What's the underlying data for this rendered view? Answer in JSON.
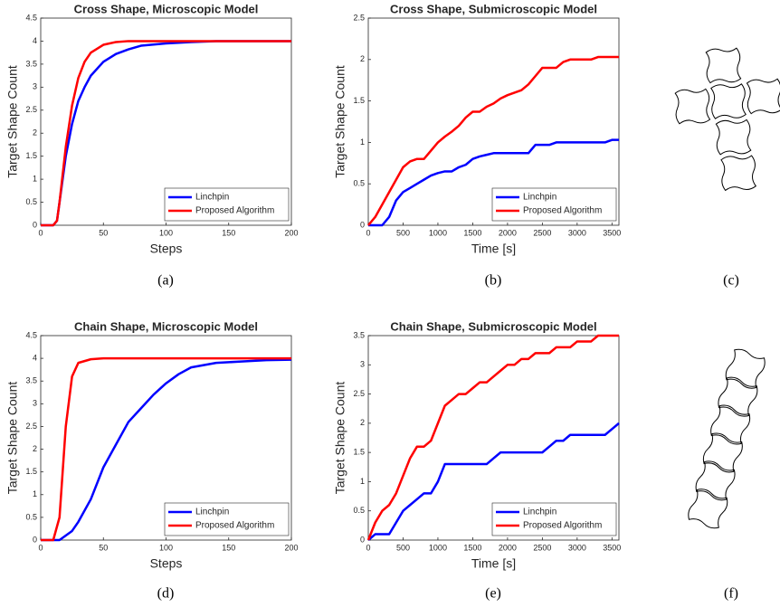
{
  "chart_data": [
    {
      "type": "line",
      "title": "Cross Shape, Microscopic Model",
      "xlabel": "Steps",
      "ylabel": "Target Shape Count",
      "x": [
        0,
        10,
        13,
        15,
        20,
        25,
        30,
        35,
        40,
        50,
        60,
        70,
        80,
        100,
        120,
        140,
        200
      ],
      "series": [
        {
          "name": "Linchpin",
          "color": "#0000ff",
          "values": [
            0,
            0,
            0.1,
            0.5,
            1.5,
            2.2,
            2.7,
            3.0,
            3.25,
            3.55,
            3.72,
            3.82,
            3.9,
            3.95,
            3.98,
            4,
            4
          ]
        },
        {
          "name": "Proposed Algorithm",
          "color": "#ff0000",
          "values": [
            0,
            0,
            0.1,
            0.5,
            1.7,
            2.6,
            3.2,
            3.55,
            3.75,
            3.92,
            3.98,
            4,
            4,
            4,
            4,
            4,
            4
          ]
        }
      ],
      "xlim": [
        0,
        200
      ],
      "ylim": [
        0,
        4.5
      ],
      "xticks": [
        0,
        50,
        100,
        150,
        200
      ],
      "yticks": [
        0,
        0.5,
        1,
        1.5,
        2,
        2.5,
        3,
        3.5,
        4,
        4.5
      ],
      "legend": "lower right"
    },
    {
      "type": "line",
      "title": "Cross Shape, Submicroscopic Model",
      "xlabel": "Time [s]",
      "ylabel": "Target Shape Count",
      "x": [
        0,
        100,
        200,
        300,
        400,
        500,
        600,
        700,
        800,
        900,
        1000,
        1100,
        1200,
        1300,
        1400,
        1500,
        1600,
        1700,
        1800,
        1900,
        2000,
        2100,
        2200,
        2300,
        2400,
        2500,
        2600,
        2700,
        2800,
        2900,
        3000,
        3100,
        3200,
        3300,
        3400,
        3500,
        3600
      ],
      "series": [
        {
          "name": "Linchpin",
          "color": "#0000ff",
          "values": [
            0,
            0,
            0,
            0.1,
            0.3,
            0.4,
            0.45,
            0.5,
            0.55,
            0.6,
            0.63,
            0.65,
            0.65,
            0.7,
            0.73,
            0.8,
            0.83,
            0.85,
            0.87,
            0.87,
            0.87,
            0.87,
            0.87,
            0.87,
            0.97,
            0.97,
            0.97,
            1.0,
            1.0,
            1.0,
            1.0,
            1.0,
            1.0,
            1.0,
            1.0,
            1.03,
            1.03
          ]
        },
        {
          "name": "Proposed Algorithm",
          "color": "#ff0000",
          "values": [
            0,
            0.1,
            0.25,
            0.4,
            0.55,
            0.7,
            0.77,
            0.8,
            0.8,
            0.9,
            1.0,
            1.07,
            1.13,
            1.2,
            1.3,
            1.37,
            1.37,
            1.43,
            1.47,
            1.53,
            1.57,
            1.6,
            1.63,
            1.7,
            1.8,
            1.9,
            1.9,
            1.9,
            1.97,
            2.0,
            2.0,
            2.0,
            2.0,
            2.03,
            2.03,
            2.03,
            2.03
          ]
        }
      ],
      "xlim": [
        0,
        3600
      ],
      "ylim": [
        0,
        2.5
      ],
      "xticks": [
        0,
        500,
        1000,
        1500,
        2000,
        2500,
        3000,
        3500
      ],
      "yticks": [
        0,
        0.5,
        1,
        1.5,
        2,
        2.5
      ],
      "legend": "lower right"
    },
    {
      "type": "line",
      "title": "Chain Shape, Microscopic Model",
      "xlabel": "Steps",
      "ylabel": "Target Shape Count",
      "x": [
        0,
        10,
        15,
        20,
        25,
        30,
        40,
        50,
        60,
        70,
        80,
        90,
        100,
        110,
        120,
        140,
        160,
        180,
        200
      ],
      "series": [
        {
          "name": "Linchpin",
          "color": "#0000ff",
          "values": [
            0,
            0,
            0,
            0.1,
            0.2,
            0.4,
            0.9,
            1.6,
            2.1,
            2.6,
            2.9,
            3.2,
            3.45,
            3.65,
            3.8,
            3.9,
            3.93,
            3.96,
            3.97
          ]
        },
        {
          "name": "Proposed Algorithm",
          "color": "#ff0000",
          "values": [
            0,
            0,
            0.5,
            2.5,
            3.6,
            3.9,
            3.98,
            4,
            4,
            4,
            4,
            4,
            4,
            4,
            4,
            4,
            4,
            4,
            4
          ]
        }
      ],
      "xlim": [
        0,
        200
      ],
      "ylim": [
        0,
        4.5
      ],
      "xticks": [
        0,
        50,
        100,
        150,
        200
      ],
      "yticks": [
        0,
        0.5,
        1,
        1.5,
        2,
        2.5,
        3,
        3.5,
        4,
        4.5
      ],
      "legend": "lower right"
    },
    {
      "type": "line",
      "title": "Chain Shape, Submicroscopic Model",
      "xlabel": "Time [s]",
      "ylabel": "Target Shape Count",
      "x": [
        0,
        100,
        200,
        300,
        400,
        500,
        600,
        700,
        800,
        900,
        1000,
        1100,
        1200,
        1300,
        1400,
        1500,
        1600,
        1700,
        1800,
        1900,
        2000,
        2100,
        2200,
        2300,
        2400,
        2500,
        2600,
        2700,
        2800,
        2900,
        3000,
        3100,
        3200,
        3300,
        3400,
        3500,
        3600
      ],
      "series": [
        {
          "name": "Linchpin",
          "color": "#0000ff",
          "values": [
            0,
            0.1,
            0.1,
            0.1,
            0.3,
            0.5,
            0.6,
            0.7,
            0.8,
            0.8,
            1.0,
            1.3,
            1.3,
            1.3,
            1.3,
            1.3,
            1.3,
            1.3,
            1.4,
            1.5,
            1.5,
            1.5,
            1.5,
            1.5,
            1.5,
            1.5,
            1.6,
            1.7,
            1.7,
            1.8,
            1.8,
            1.8,
            1.8,
            1.8,
            1.8,
            1.9,
            2.0
          ]
        },
        {
          "name": "Proposed Algorithm",
          "color": "#ff0000",
          "values": [
            0,
            0.3,
            0.5,
            0.6,
            0.8,
            1.1,
            1.4,
            1.6,
            1.6,
            1.7,
            2.0,
            2.3,
            2.4,
            2.5,
            2.5,
            2.6,
            2.7,
            2.7,
            2.8,
            2.9,
            3.0,
            3.0,
            3.1,
            3.1,
            3.2,
            3.2,
            3.2,
            3.3,
            3.3,
            3.3,
            3.4,
            3.4,
            3.4,
            3.5,
            3.5,
            3.5,
            3.5
          ]
        }
      ],
      "xlim": [
        0,
        3600
      ],
      "ylim": [
        0,
        3.5
      ],
      "xticks": [
        0,
        500,
        1000,
        1500,
        2000,
        2500,
        3000,
        3500
      ],
      "yticks": [
        0,
        0.5,
        1,
        1.5,
        2,
        2.5,
        3,
        3.5
      ],
      "legend": "lower right"
    }
  ],
  "captions": [
    "(a)",
    "(b)",
    "(c)",
    "(d)",
    "(e)",
    "(f)"
  ]
}
